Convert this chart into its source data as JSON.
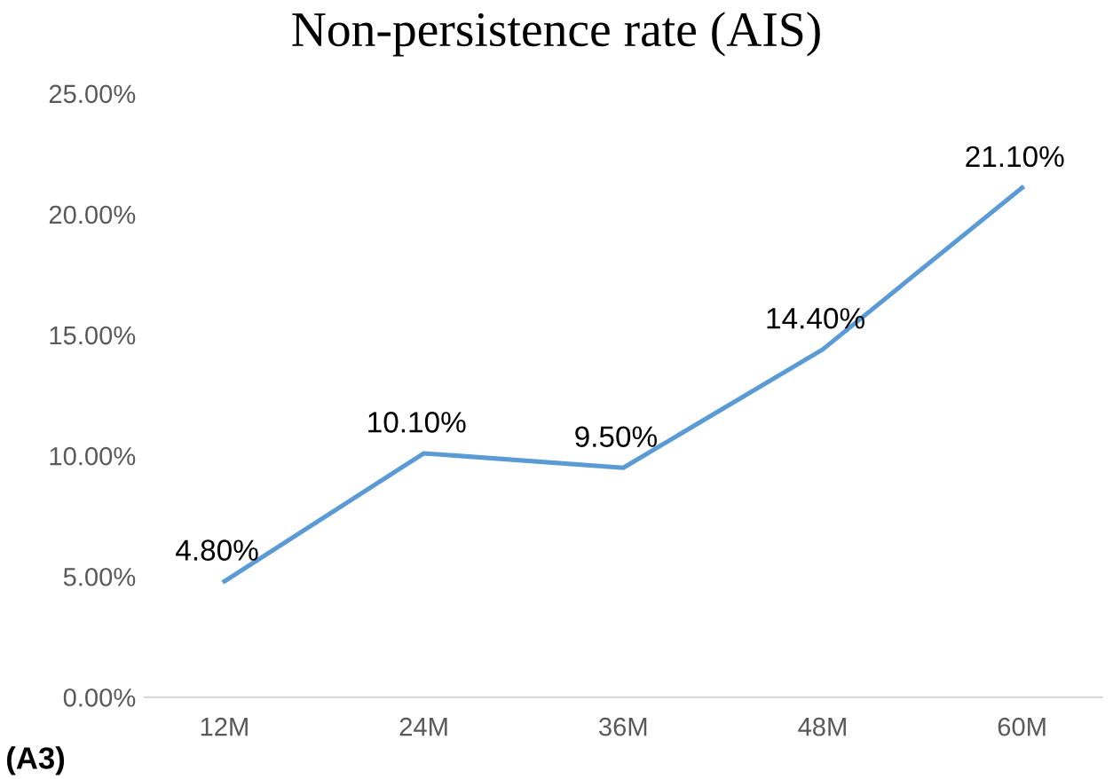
{
  "chart_data": {
    "type": "line",
    "title": "Non-persistence rate (AIS)",
    "categories": [
      "12M",
      "24M",
      "36M",
      "48M",
      "60M"
    ],
    "series": [
      {
        "color": "#5b9bd5",
        "values": [
          4.8,
          10.1,
          9.5,
          14.4,
          21.1
        ],
        "value_labels": [
          "4.80%",
          "10.10%",
          "9.50%",
          "14.40%",
          "21.10%"
        ]
      }
    ],
    "ylim": [
      0,
      25
    ],
    "yticks": [
      {
        "value": 0,
        "label": "0.00%"
      },
      {
        "value": 5,
        "label": "5.00%"
      },
      {
        "value": 10,
        "label": "10.00%"
      },
      {
        "value": 15,
        "label": "15.00%"
      },
      {
        "value": 20,
        "label": "20.00%"
      },
      {
        "value": 25,
        "label": "25.00%"
      }
    ],
    "grid": false,
    "legend": false,
    "marker": "none",
    "line_style": "solid",
    "annotations": [
      "(A3)"
    ]
  }
}
